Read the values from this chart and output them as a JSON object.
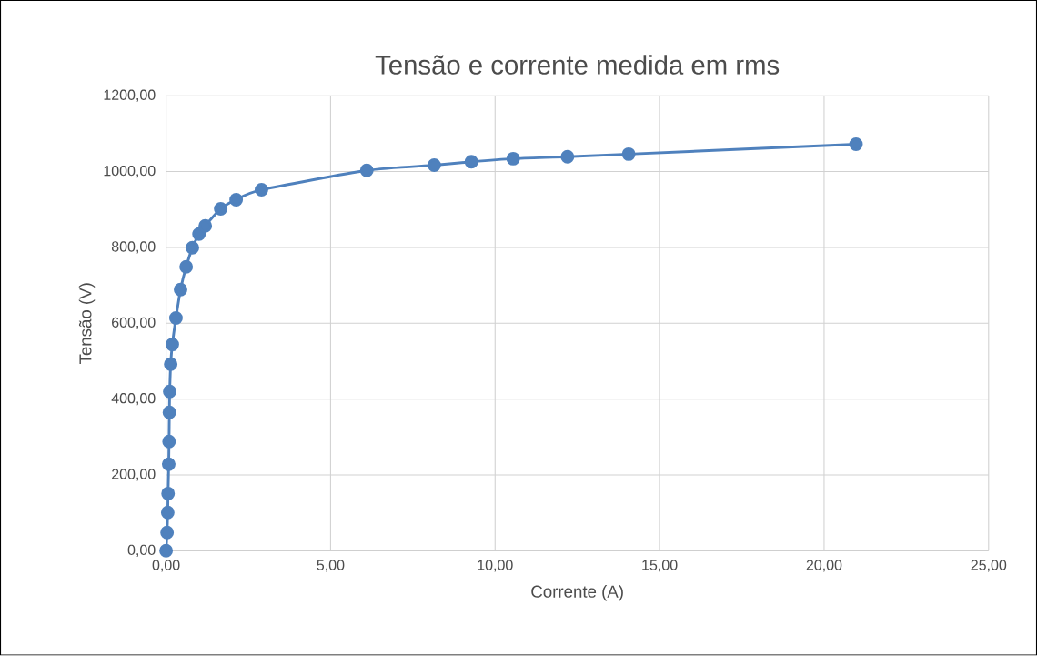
{
  "chart_data": {
    "type": "line",
    "title": "Tensão e corrente medida em rms",
    "xlabel": "Corrente (A)",
    "ylabel": "Tensão (V)",
    "x": [
      0,
      0.03,
      0.05,
      0.06,
      0.08,
      0.09,
      0.1,
      0.11,
      0.14,
      0.19,
      0.3,
      0.44,
      0.61,
      0.8,
      1.0,
      1.19,
      1.66,
      2.13,
      2.9,
      6.1,
      8.15,
      9.28,
      10.55,
      12.2,
      14.06,
      20.97
    ],
    "series": [
      {
        "color": "#4f81bd",
        "values": [
          0,
          48,
          101,
          151,
          228,
          288,
          365,
          420,
          492,
          544,
          614,
          689,
          749,
          799,
          835,
          857,
          902,
          926,
          952,
          1003,
          1017,
          1026,
          1034,
          1039,
          1046,
          1072
        ]
      }
    ],
    "xlim": [
      0,
      25
    ],
    "ylim": [
      0,
      1200
    ],
    "xticks": [
      {
        "value": 0,
        "label": "0,00"
      },
      {
        "value": 5,
        "label": "5,00"
      },
      {
        "value": 10,
        "label": "10,00"
      },
      {
        "value": 15,
        "label": "15,00"
      },
      {
        "value": 20,
        "label": "20,00"
      },
      {
        "value": 25,
        "label": "25,00"
      }
    ],
    "yticks": [
      {
        "value": 0,
        "label": "0,00"
      },
      {
        "value": 200,
        "label": "200,00"
      },
      {
        "value": 400,
        "label": "400,00"
      },
      {
        "value": 600,
        "label": "600,00"
      },
      {
        "value": 800,
        "label": "800,00"
      },
      {
        "value": 1000,
        "label": "1000,00"
      },
      {
        "value": 1200,
        "label": "1200,00"
      }
    ],
    "grid": true,
    "marker": "circle",
    "line_style": "solid"
  }
}
